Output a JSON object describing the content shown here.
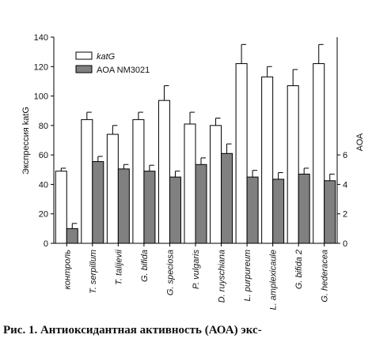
{
  "chart_data": {
    "type": "bar",
    "y_label": "Экспрессия katG",
    "y2_label": "АОА",
    "categories": [
      "контроль",
      "T. serpillum",
      "T. talijevii",
      "G. bifida",
      "G. speciosa",
      "P. vulgaris",
      "D. ruyschiana",
      "L. purpureum",
      "L. amplexicaule",
      "G. bifida 2",
      "G. hederacea"
    ],
    "series": [
      {
        "name": "katG",
        "color": "#ffffff",
        "values": [
          49,
          84,
          74,
          84,
          97,
          81,
          80,
          122,
          113,
          107,
          122
        ],
        "errors": [
          2,
          5,
          6,
          5,
          10,
          8,
          5,
          13,
          7,
          11,
          13
        ]
      },
      {
        "name": "AOA NM3021",
        "color": "#808080",
        "axis": "y2",
        "values": [
          1.0,
          5.55,
          5.05,
          4.9,
          4.5,
          5.35,
          6.1,
          4.5,
          4.35,
          4.7,
          4.25
        ],
        "errors": [
          0.35,
          0.35,
          0.3,
          0.4,
          0.4,
          0.45,
          0.65,
          0.45,
          0.45,
          0.4,
          0.45
        ]
      }
    ],
    "ylim": [
      0,
      140
    ],
    "yticks": [
      0,
      20,
      40,
      60,
      80,
      100,
      120,
      140
    ],
    "y2lim": [
      0,
      14
    ],
    "y2ticks": [
      0,
      2,
      4,
      6
    ],
    "legend": "top-left"
  },
  "caption": "Рис. 1. Антиоксидантная активность (АОА) экс-"
}
